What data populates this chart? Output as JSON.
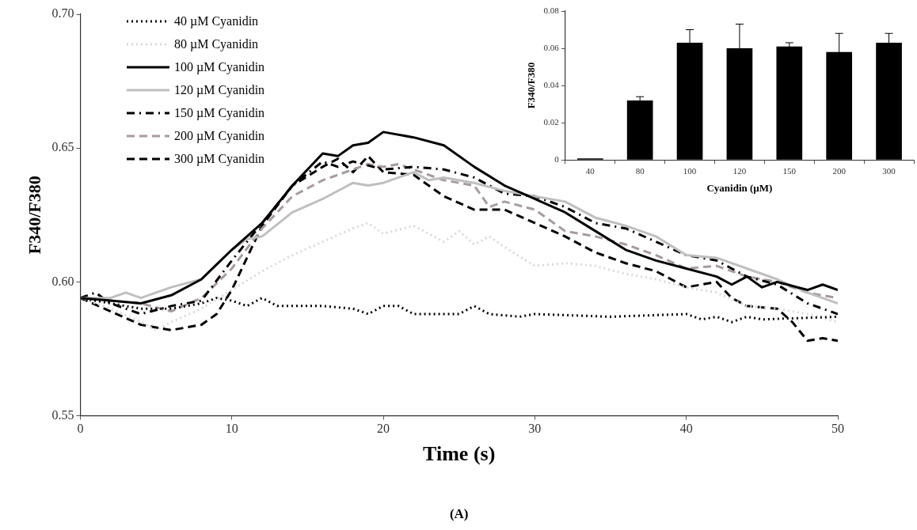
{
  "chart_data": [
    {
      "type": "line",
      "xlabel": "Time (s)",
      "ylabel": "F340/F380",
      "annotations": [
        "(A)"
      ],
      "xlim": [
        0,
        50
      ],
      "xticks": [
        0,
        10,
        20,
        30,
        40,
        50
      ],
      "ylim": [
        0.55,
        0.7
      ],
      "yticks": [
        {
          "value": 0.55,
          "label": "0.55"
        },
        {
          "value": 0.6,
          "label": "0.60"
        },
        {
          "value": 0.65,
          "label": "0.65"
        },
        {
          "value": 0.7,
          "label": "0.70"
        }
      ],
      "grid": false,
      "legend": "top left",
      "marker": "none",
      "series": [
        {
          "name": "40 µM Cyanidin",
          "color": "#000000",
          "line_style": "dotted",
          "x": [
            0,
            2,
            4,
            6,
            8,
            9,
            10,
            11,
            12,
            13,
            16,
            18,
            19,
            20,
            21,
            22,
            25,
            26,
            27,
            29,
            30,
            35,
            40,
            41,
            42,
            43,
            44,
            45,
            50
          ],
          "values": [
            0.594,
            0.592,
            0.59,
            0.59,
            0.592,
            0.594,
            0.593,
            0.591,
            0.594,
            0.591,
            0.591,
            0.59,
            0.588,
            0.591,
            0.591,
            0.588,
            0.588,
            0.591,
            0.588,
            0.587,
            0.588,
            0.587,
            0.588,
            0.586,
            0.587,
            0.585,
            0.587,
            0.586,
            0.587
          ]
        },
        {
          "name": "80 µM Cyanidin",
          "color": "#d9d9d9",
          "line_style": "dotted",
          "x": [
            0,
            2,
            4,
            5,
            6,
            8,
            10,
            12,
            14,
            16,
            18,
            19,
            20,
            22,
            24,
            25,
            26,
            27,
            28,
            30,
            32,
            34,
            36,
            38,
            40,
            42,
            44,
            46,
            48,
            50
          ],
          "values": [
            0.594,
            0.59,
            0.585,
            0.582,
            0.585,
            0.59,
            0.597,
            0.604,
            0.61,
            0.615,
            0.62,
            0.622,
            0.618,
            0.621,
            0.615,
            0.619,
            0.614,
            0.617,
            0.613,
            0.606,
            0.607,
            0.606,
            0.603,
            0.601,
            0.598,
            0.596,
            0.591,
            0.59,
            0.588,
            0.585
          ]
        },
        {
          "name": "100 µM Cyanidin",
          "color": "#000000",
          "line_style": "solid",
          "x": [
            0,
            2,
            4,
            6,
            8,
            10,
            12,
            14,
            16,
            17,
            18,
            19,
            20,
            22,
            24,
            26,
            28,
            30,
            32,
            34,
            36,
            38,
            40,
            42,
            43,
            44,
            45,
            46,
            48,
            49,
            50
          ],
          "values": [
            0.594,
            0.593,
            0.592,
            0.595,
            0.601,
            0.612,
            0.622,
            0.636,
            0.648,
            0.647,
            0.651,
            0.652,
            0.656,
            0.654,
            0.651,
            0.643,
            0.636,
            0.631,
            0.626,
            0.619,
            0.612,
            0.608,
            0.605,
            0.602,
            0.599,
            0.602,
            0.598,
            0.6,
            0.597,
            0.599,
            0.597
          ]
        },
        {
          "name": "120 µM Cyanidin",
          "color": "#bfbfbf",
          "line_style": "solid",
          "x": [
            0,
            2,
            3,
            4,
            6,
            8,
            10,
            11,
            12,
            14,
            16,
            18,
            19,
            20,
            22,
            23,
            24,
            26,
            28,
            30,
            32,
            34,
            36,
            38,
            40,
            42,
            44,
            46,
            48,
            50
          ],
          "values": [
            0.594,
            0.594,
            0.596,
            0.594,
            0.598,
            0.601,
            0.612,
            0.616,
            0.617,
            0.626,
            0.631,
            0.637,
            0.636,
            0.637,
            0.641,
            0.638,
            0.639,
            0.637,
            0.634,
            0.632,
            0.63,
            0.624,
            0.621,
            0.617,
            0.61,
            0.609,
            0.605,
            0.601,
            0.596,
            0.592
          ]
        },
        {
          "name": "150 µM Cyanidin",
          "color": "#000000",
          "line_style": "dashdot",
          "x": [
            0,
            1,
            2,
            4,
            6,
            8,
            10,
            12,
            14,
            16,
            17,
            18,
            20,
            22,
            24,
            26,
            28,
            30,
            32,
            34,
            36,
            38,
            40,
            42,
            44,
            46,
            48,
            50
          ],
          "values": [
            0.594,
            0.596,
            0.592,
            0.588,
            0.591,
            0.593,
            0.608,
            0.622,
            0.636,
            0.645,
            0.643,
            0.645,
            0.642,
            0.643,
            0.642,
            0.639,
            0.633,
            0.632,
            0.628,
            0.622,
            0.62,
            0.615,
            0.61,
            0.608,
            0.602,
            0.599,
            0.592,
            0.588
          ]
        },
        {
          "name": "200 µM Cyanidin",
          "color": "#a89aa3",
          "line_style": "dashed",
          "x": [
            0,
            2,
            4,
            6,
            8,
            10,
            12,
            14,
            16,
            18,
            19,
            20,
            21,
            22,
            24,
            26,
            27,
            28,
            30,
            32,
            34,
            36,
            38,
            40,
            42,
            44,
            46,
            48,
            50
          ],
          "values": [
            0.594,
            0.593,
            0.592,
            0.589,
            0.594,
            0.605,
            0.62,
            0.632,
            0.638,
            0.642,
            0.644,
            0.643,
            0.644,
            0.642,
            0.638,
            0.636,
            0.628,
            0.63,
            0.627,
            0.619,
            0.617,
            0.614,
            0.61,
            0.605,
            0.606,
            0.602,
            0.6,
            0.596,
            0.594
          ]
        },
        {
          "name": "300 µM Cyanidin",
          "color": "#000000",
          "line_style": "dashed",
          "x": [
            0,
            2,
            4,
            6,
            8,
            9,
            10,
            12,
            14,
            16,
            17,
            18,
            19,
            20,
            22,
            24,
            26,
            28,
            30,
            32,
            34,
            36,
            38,
            40,
            42,
            43,
            44,
            46,
            47,
            48,
            49,
            50
          ],
          "values": [
            0.594,
            0.589,
            0.584,
            0.582,
            0.584,
            0.588,
            0.597,
            0.621,
            0.636,
            0.643,
            0.646,
            0.641,
            0.647,
            0.641,
            0.64,
            0.632,
            0.627,
            0.627,
            0.622,
            0.617,
            0.611,
            0.607,
            0.604,
            0.598,
            0.6,
            0.594,
            0.591,
            0.59,
            0.585,
            0.578,
            0.579,
            0.578
          ]
        }
      ]
    },
    {
      "type": "bar",
      "xlabel": "Cyanidin (µM)",
      "ylabel": "F340/F380",
      "categories": [
        "40",
        "80",
        "100",
        "120",
        "150",
        "200",
        "300"
      ],
      "color": "#000000",
      "grid": false,
      "values": [
        0.0008,
        0.032,
        0.063,
        0.06,
        0.061,
        0.058,
        0.063
      ],
      "errors": [
        null,
        0.002,
        0.007,
        0.013,
        0.002,
        0.01,
        0.005
      ],
      "ylim": [
        0,
        0.08
      ],
      "yticks": [
        0,
        0.02,
        0.04,
        0.06,
        0.08
      ]
    }
  ]
}
